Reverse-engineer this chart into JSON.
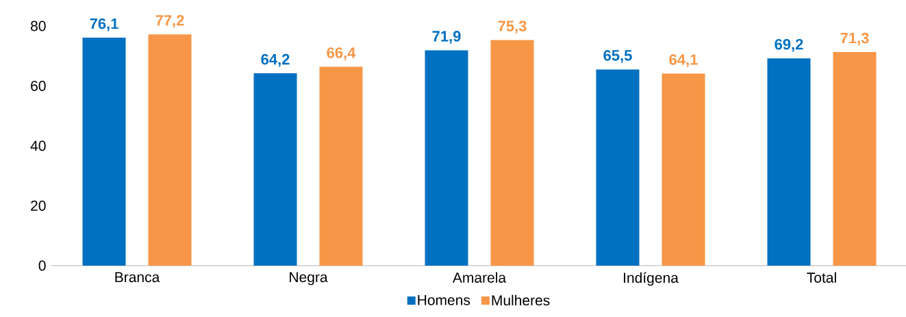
{
  "chart_data": {
    "type": "bar",
    "categories": [
      "Branca",
      "Negra",
      "Amarela",
      "Indígena",
      "Total"
    ],
    "series": [
      {
        "name": "Homens",
        "color": "#0070c0",
        "values": [
          76.1,
          64.2,
          71.9,
          65.5,
          69.2
        ],
        "value_labels": [
          "76,1",
          "64,2",
          "71,9",
          "65,5",
          "69,2"
        ]
      },
      {
        "name": "Mulheres",
        "color": "#f79646",
        "values": [
          77.2,
          66.4,
          75.3,
          64.1,
          71.3
        ],
        "value_labels": [
          "77,2",
          "66,4",
          "75,3",
          "64,1",
          "71,3"
        ]
      }
    ],
    "ylim": [
      0,
      80
    ],
    "yticks": [
      0,
      20,
      40,
      60,
      80
    ],
    "grid": false,
    "legend": "bottom"
  }
}
